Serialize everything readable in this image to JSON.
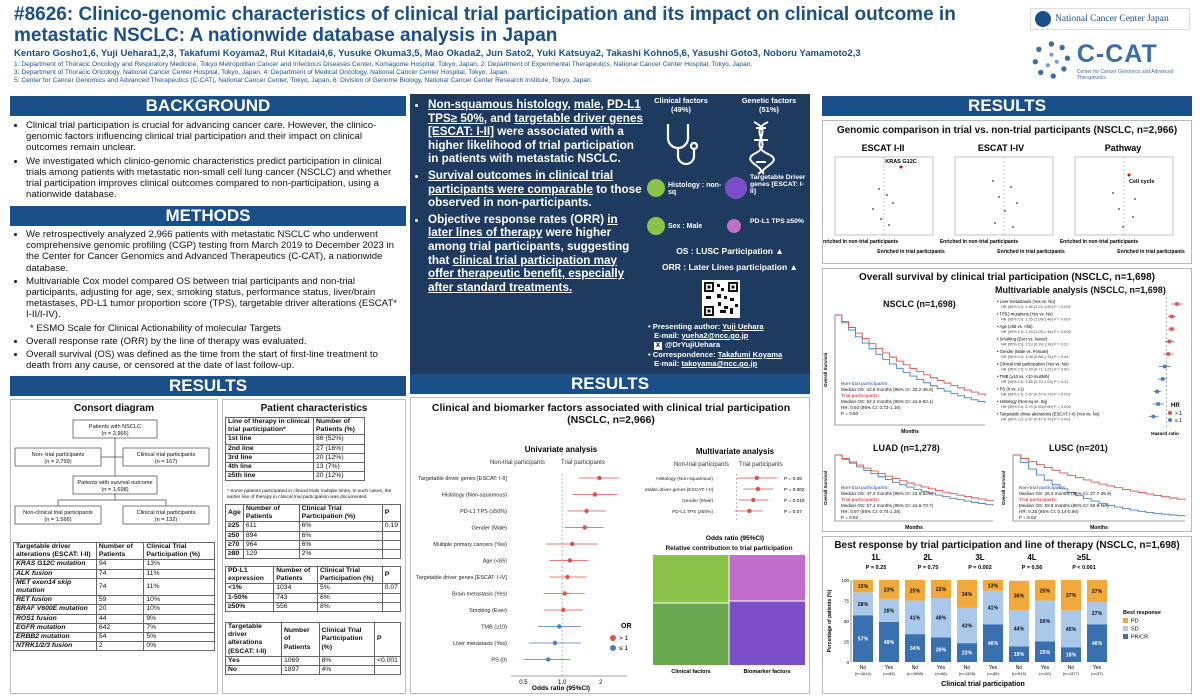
{
  "header": {
    "title": "#8626: Clinico-genomic characteristics of clinical trial participation and its impact on clinical outcome in metastatic NSCLC: A nationwide database analysis in Japan",
    "authors": "Kentaro Gosho1,6, Yuji Uehara1,2,3, Takafumi Koyama2, Rui Kitadai4,6, Yusuke Okuma3,5, Mao Okada2, Jun Sato2, Yuki Katsuya2, Takashi Kohno5,6, Yasushi Goto3, Noboru Yamamoto2,3",
    "affiliations": [
      "1: Department of Thoracic Oncology and Respiratory Medicine, Tokyo Metropolitan Cancer and Infectious Diseases Center, Komagome Hospital, Tokyo, Japan, 2: Department of Experimental Therapeutics, National Cancer Center Hospital, Tokyo, Japan,",
      "3: Department of Thoracic Oncology, National Cancer Center Hospital, Tokyo, Japan, 4: Department of Medical Oncology, National Cancer Center Hospital, Tokyo, Japan,",
      "5: Center for Cancer Genomics and Advanced Therapeutics (C-CAT), National Cancer Center, Tokyo, Japan, 6: Division of Genome Biology, National Cancer Center Research Institute, Tokyo, Japan."
    ],
    "logo_ncc": "National Cancer Center Japan",
    "logo_ccat": "C-CAT",
    "logo_ccat_sub": "Center for Cancer Genomics and Advanced Therapeutics"
  },
  "background": {
    "heading": "BACKGROUND",
    "items": [
      "Clinical trial participation is crucial for advancing cancer care. However, the clinico-genomic factors influencing clinical trial participation and their impact on clinical outcomes remain unclear.",
      "We investigated which clinico-genomic characteristics predict participation in clinical trials among patients with metastatic non-small cell lung cancer (NSCLC) and whether trial participation improves clinical outcomes compared to non-participation, using a nationwide database."
    ]
  },
  "methods": {
    "heading": "METHODS",
    "items": [
      "We retrospectively analyzed 2,966 patients with metastatic NSCLC who underwent comprehensive genomic profiling (CGP) testing from March 2019 to December 2023 in the Center for Cancer Genomics and Advanced Therapeutics (C-CAT), a nationwide database.",
      "Multivariable Cox model compared OS between trial participants and non-trial participants, adjusting for age, sex, smoking status, performance status, liver/brain metastases, PD-L1 tumor proportion score (TPS), targetable driver alterations (ESCAT* I-II/I-IV).",
      "* ESMO Scale for Clinical Actionability of molecular Targets",
      "Overall response rate (ORR) by the line of therapy was evaluated.",
      "Overall survival (OS) was defined as the time from the start of first-line treatment to death from any cause, or censored at the date of last follow-up."
    ]
  },
  "results_left": {
    "heading": "RESULTS",
    "consort": {
      "title": "Consort diagram",
      "top": "Patients with NSCLC",
      "top_n": "(n = 2,966)",
      "nontrial": "Non- trial participants",
      "nontrial_n": "(n = 2,799)",
      "trial": "Clinical trial participants",
      "trial_n": "(n = 167)",
      "survival": "Patients with survival outcome",
      "survival_n": "(n = 1,698)",
      "nontrial2": "Non-clinical trial participants",
      "nontrial2_n": "(n = 1,566)",
      "trial2": "Clinical trial participants",
      "trial2_n": "(n = 132)"
    },
    "driver_table": {
      "headers": [
        "Targetable driver alterations (ESCAT: I-II)",
        "Number of Patients",
        "Clinical Trial Participation (%)"
      ],
      "rows": [
        [
          "KRAS G12C mutation",
          "94",
          "13%"
        ],
        [
          "ALK fusion",
          "74",
          "11%"
        ],
        [
          "MET exon14 skip mutation",
          "74",
          "11%"
        ],
        [
          "RET fusion",
          "59",
          "10%"
        ],
        [
          "BRAF V600E mutation",
          "20",
          "10%"
        ],
        [
          "ROS1 fusion",
          "44",
          "9%"
        ],
        [
          "EGFR mutation",
          "642",
          "7%"
        ],
        [
          "ERBB2 mutation",
          "54",
          "5%"
        ],
        [
          "NTRK1/2/3 fusion",
          "2",
          "0%"
        ]
      ]
    },
    "patient_char": {
      "title": "Patient characteristics",
      "line_headers": [
        "Line of therapy in clinical trial participation*",
        "Number of Patients (%)"
      ],
      "line_rows": [
        [
          "1st line",
          "86 (52%)"
        ],
        [
          "2nd line",
          "27 (16%)"
        ],
        [
          "3rd line",
          "20 (12%)"
        ],
        [
          "4th line",
          "13 (7%)"
        ],
        [
          "≥5th line",
          "20 (12%)"
        ]
      ],
      "line_note": "* Some patients participated in clinical trials multiple times. In such cases, the earlier line of therapy in clinical trial participation was documented.",
      "age_headers": [
        "Age",
        "Number of Patients",
        "Clinical Trial Participation (%)",
        "P"
      ],
      "age_rows": [
        [
          "≥25",
          "611",
          "6%",
          "0.19"
        ],
        [
          "≥50",
          "894",
          "6%",
          ""
        ],
        [
          "≥70",
          "964",
          "6%",
          ""
        ],
        [
          "≥80",
          "129",
          "2%",
          ""
        ]
      ],
      "pdl1_headers": [
        "PD-L1 expression",
        "Number of Patients",
        "Clinical Trial Participation (%)",
        "P"
      ],
      "pdl1_rows": [
        [
          "<1%",
          "1034",
          "5%",
          "0.07"
        ],
        [
          "1-50%",
          "743",
          "6%",
          ""
        ],
        [
          "≥50%",
          "556",
          "8%",
          ""
        ]
      ],
      "tdg_headers": [
        "Targetable driver alterations (ESCAT: I-II)",
        "Number of Patients",
        "Clinical Trial Participation (%)",
        "P"
      ],
      "tdg_rows": [
        [
          "Yes",
          "1069",
          "8%",
          "<0.001"
        ],
        [
          "No",
          "1897",
          "4%",
          ""
        ]
      ]
    }
  },
  "summary": {
    "b1_parts": [
      "Non-squamous histology",
      ", ",
      "male",
      ", ",
      "PD-L1 TPS≥ 50%",
      ", and ",
      "targetable driver genes [ESCAT: I-II]",
      " were associated with a higher likelihood of trial participation in patients with metastatic NSCLC."
    ],
    "b2_u": "Survival outcomes in clinical trial participants were comparable",
    "b2_rest": " to those observed in non-participants.",
    "b3_a": "Objective response rates (ORR) ",
    "b3_u1": "in later lines of therapy",
    "b3_b": " were higher among trial participants, suggesting that ",
    "b3_u2": "clinical trial participation may offer therapeutic benefit, especially after standard treatments.",
    "clinical_label": "Clinical factors",
    "clinical_pct": "(49%)",
    "genetic_label": "Genetic factors",
    "genetic_pct": "(51%)",
    "histology": "Histology : non-sq",
    "sex": "Sex : Male",
    "driver": "Targetable Driver genes [ESCAT: I-II]",
    "pdl1": "PD-L1 TPS ≥50%",
    "os_line": "OS : LUSC Participation",
    "orr_line": "ORR : Later Lines participation",
    "presenting_label": "Presenting author: ",
    "presenting_name": "Yuji Uehara",
    "presenting_email_label": "E-mail: ",
    "presenting_email": "yueha2@ncc.go.jp",
    "handle": "@DrYujiUehara",
    "corr_label": "Correspondence: ",
    "corr_name": "Takafumi Koyama",
    "corr_email_label": "E-mail: ",
    "corr_email": "takoyama@ncc.go.jp"
  },
  "results_center": {
    "heading": "RESULTS",
    "title": "Clinical and biomarker factors associated with clinical trial participation (NSCLC, n=2,966)",
    "uni_title": "Univariate analysis",
    "uni_left": "Non-trial participants",
    "uni_right": "Trial participants",
    "multi_title": "Multivariate analysis",
    "multi_left": "Non-trial participants",
    "multi_right": "Trial participants",
    "or_title": "OR",
    "or_gt": "> 1",
    "or_le": "≤ 1",
    "xlabel": "Odds ratio (95%CI)",
    "multi_xlabel": "Odds ratio (95%CI)",
    "rel_title": "Relative contribution to trial participation",
    "rel_clinical": "Clinical factors",
    "rel_biomarker": "Biomarker factors"
  },
  "results_right": {
    "heading": "RESULTS",
    "genomic_title": "Genomic comparison in trial vs. non-trial participants (NSCLC, n=2,966)",
    "escat12": "ESCAT I-II",
    "escat14": "ESCAT I-IV",
    "pathway": "Pathway",
    "kras": "KRAS G12C",
    "cellcycle": "Cell cycle",
    "enriched_non": "Enriched in non-trial participants",
    "enriched_trial": "Enriched in trial participants",
    "os_title": "Overall survival by clinical trial participation (NSCLC, n=1,698)",
    "nsclc_label": "NSCLC (n=1,698)",
    "multi_label": "Multivariable analysis (NSCLC, n=1,698)",
    "luad_label": "LUAD (n=1,278)",
    "lusc_label": "LUSC (n=201)",
    "months": "Months",
    "overall_survival": "Overall Survival",
    "hazard_ratio": "Hazard ratio",
    "hr_title": "HR",
    "hr_gt": "> 1",
    "hr_le": "≤ 1",
    "nsclc_legend": [
      "Non-trial participants:",
      "Median OS: 42.8 months (95% CI: 40.2-45.8)",
      "Trial participants:",
      "Median OS: 52.2 months (95% CI: 44.6-62.1)",
      "HR: 0.92 (95% CI: 0.73-1.16)",
      "P = 0.50"
    ],
    "luad_legend": [
      "Non-trial participants:",
      "Median OS: 47.3 months (95% CI: 43.6-52.8)",
      "Trial participants:",
      "Median OS: 57.1 months (95% CI: 44.6-73.7)",
      "HR: 0.97 (95% CI: 0.74-1.28)",
      "P = 0.82"
    ],
    "lusc_legend": [
      "Non-trial participants:",
      "Median OS: 26.3 months (95% CI: 27.7-35.9)",
      "Trial participants:",
      "Median OS: 59.8 months (95% CI: 56.9-NA)",
      "HR: 0.35 (95% CI: 0.14-0.86)",
      "P = 0.02"
    ],
    "multivariable_rows": [
      [
        "Liver metastases (Yes vs. No)",
        "HR (95% CI): 1.56 (1.22-1.99)",
        "P < 0.001"
      ],
      [
        "TP53 mutations (Yes vs. No)",
        "HR (95% CI): 1.25 (1.06-1.48)",
        "P = 0.007"
      ],
      [
        "Age (≥65 vs. <65)",
        "HR (95% CI): 1.24 (1.05-1.46)",
        "P = 0.009"
      ],
      [
        "Smoking (Ever vs. Never)",
        "HR (95% CI): 1.13 (0.93-1.38)",
        "P = 0.22"
      ],
      [
        "Gender (Male vs. Female)",
        "HR (95% CI): 1.08 (0.88-1.33)",
        "P = 0.46"
      ],
      [
        "Clinical trial participation (Yes vs. No)",
        "HR (95% CI): 0.93 (0.71-1.22)",
        "P = 0.60"
      ],
      [
        "TMB (≥10 vs. <10 mut/Mb)",
        "HR (95% CI): 0.85 (0.70-1.03)",
        "P = 0.11"
      ],
      [
        "PS (0 vs. ≥1)",
        "HR (95% CI): 0.67 (0.57-0.79)",
        "P < 0.001"
      ],
      [
        "Histology (Non-sq vs. Sq)",
        "HR (95% CI): 0.70 (0.55-0.90)",
        "P = 0.005"
      ],
      [
        "Targetable driver alterations (ESCAT: I-II) (Yes vs. No)",
        "HR (95% CI): 0.57 (0.47-0.70)",
        "P < 0.001"
      ]
    ],
    "best_title": "Best response by trial participation and line of therapy (NSCLC, n=1,698)",
    "lines": [
      {
        "label": "1L",
        "p": "P = 0.25"
      },
      {
        "label": "2L",
        "p": "P = 0.75"
      },
      {
        "label": "3L",
        "p": "P = 0.002"
      },
      {
        "label": "4L",
        "p": "P = 0.56"
      },
      {
        "label": "≥5L",
        "p": "P < 0.001"
      }
    ],
    "bar_xlabel": "Clinical trial participation",
    "bar_ylabel": "Percentage of patients (%)",
    "best_response_title": "Best response",
    "resp_pd": "PD",
    "resp_sd": "SD",
    "resp_prcr": "PR/CR"
  },
  "chart_data": [
    {
      "type": "forest",
      "title": "Univariate analysis",
      "xlabel": "Odds ratio (95%CI)",
      "xticks": [
        "0.5",
        "1.0",
        "2"
      ],
      "categories": [
        "Targetable driver genes [ESCAT: I-II]",
        "Histology (Non-squamous)",
        "PD-L1 TPS (≥50%)",
        "Gender (Male)",
        "Multiple primary cancers (Yes)",
        "Age (<65)",
        "Targetable driver genes [ESCAT: I-IV]",
        "Brain metastasis (Yes)",
        "Smoking (Ever)",
        "TMB (≥10)",
        "Liver metastasis (Yes)",
        "PS (0)"
      ],
      "or": [
        1.95,
        1.8,
        1.55,
        1.5,
        1.2,
        1.15,
        1.1,
        1.05,
        1.02,
        0.95,
        0.88,
        0.78
      ],
      "lo": [
        1.35,
        1.2,
        1.1,
        1.05,
        0.75,
        0.8,
        0.8,
        0.72,
        0.72,
        0.65,
        0.55,
        0.5
      ],
      "hi": [
        2.8,
        2.7,
        2.2,
        2.1,
        1.9,
        1.6,
        1.55,
        1.5,
        1.45,
        1.4,
        1.4,
        1.15
      ]
    },
    {
      "type": "forest",
      "title": "Multivariate analysis",
      "xlabel": "Odds ratio (95%CI)",
      "categories": [
        "Histology (Non-squamous)",
        "Targetable driver genes [ESCAT: I-II]",
        "Gender (Male)",
        "PD-L1 TPS (≥50%)"
      ],
      "p_values": [
        "P = 0.08",
        "P = 0.002",
        "P = 0.019",
        "P = 0.07"
      ],
      "or": [
        1.7,
        1.75,
        1.55,
        1.4
      ],
      "lo": [
        1.0,
        1.2,
        1.05,
        0.95
      ],
      "hi": [
        2.9,
        2.6,
        2.3,
        2.0
      ]
    },
    {
      "type": "bar",
      "title": "Best response by trial participation and line of therapy (NSCLC, n=1,698)",
      "categories": [
        "No (n=1614)",
        "Yes (n=63)",
        "No (n=1698)",
        "Yes (n=66)",
        "No (n=1328)",
        "Yes (n=36)",
        "No (n=913)",
        "Yes (n=20)",
        "No (n=1377)",
        "Yes (n=37)"
      ],
      "series": [
        {
          "name": "PR/CR",
          "values": [
            57,
            49,
            34,
            30,
            23,
            46,
            19,
            25,
            18,
            46
          ]
        },
        {
          "name": "SD",
          "values": [
            28,
            28,
            41,
            48,
            43,
            41,
            44,
            50,
            45,
            27
          ]
        },
        {
          "name": "PD",
          "values": [
            15,
            23,
            25,
            22,
            34,
            13,
            36,
            25,
            37,
            27
          ]
        }
      ],
      "ylabel": "Percentage of patients (%)",
      "xlabel": "Clinical trial participation",
      "ylim": [
        0,
        100
      ]
    }
  ]
}
